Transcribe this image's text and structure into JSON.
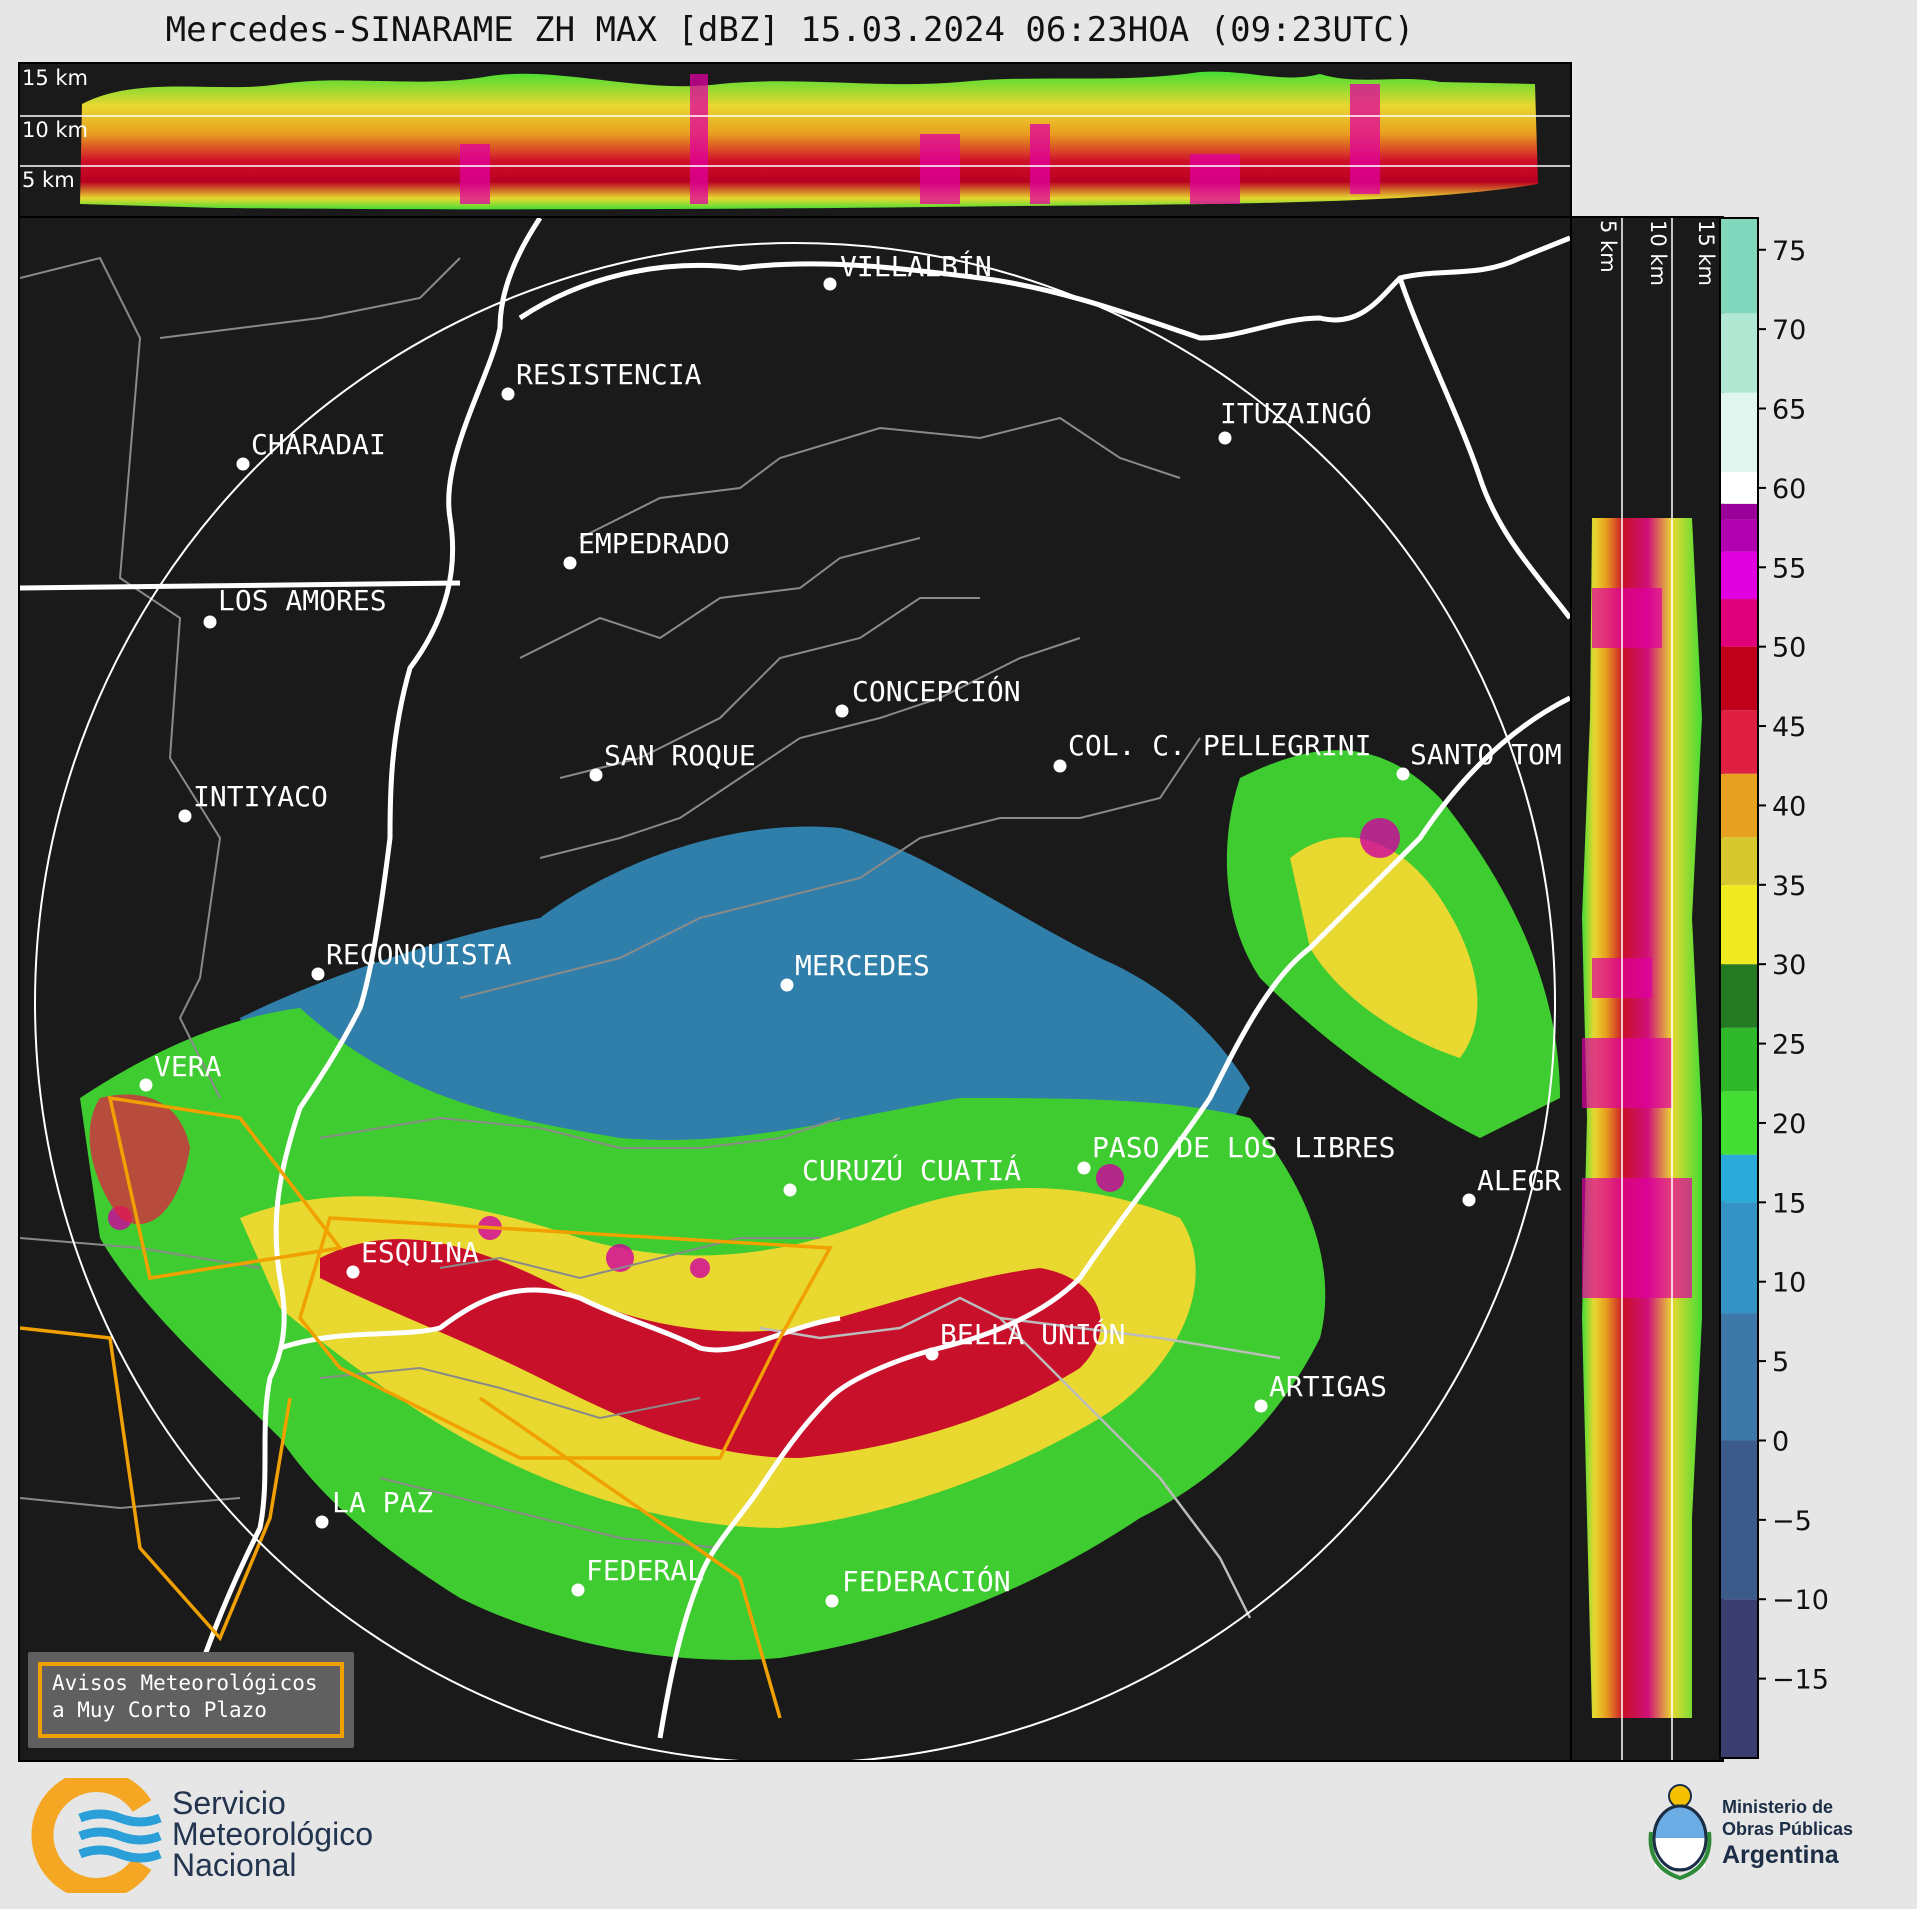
{
  "header": {
    "title": "Mercedes-SINARAME ZH MAX [dBZ] 15.03.2024 06:23HOA (09:23UTC)"
  },
  "height_axes": {
    "labels": [
      "15 km",
      "10 km",
      "5 km"
    ]
  },
  "map": {
    "cities": [
      {
        "name": "VILLALBÍN"
      },
      {
        "name": "RESISTENCIA"
      },
      {
        "name": "CHARADAI"
      },
      {
        "name": "ITUZAINGÓ"
      },
      {
        "name": "EMPEDRADO"
      },
      {
        "name": "LOS AMORES"
      },
      {
        "name": "CONCEPCIÓN"
      },
      {
        "name": "SAN ROQUE"
      },
      {
        "name": "COL. C. PELLEGRINI"
      },
      {
        "name": "SANTO TOM"
      },
      {
        "name": "INTIYACO"
      },
      {
        "name": "RECONQUISTA"
      },
      {
        "name": "MERCEDES"
      },
      {
        "name": "VERA"
      },
      {
        "name": "CURUZÚ CUATIÁ"
      },
      {
        "name": "PASO DE LOS LIBRES"
      },
      {
        "name": "ALEGR"
      },
      {
        "name": "ESQUINA"
      },
      {
        "name": "BELLA UNIÓN"
      },
      {
        "name": "ARTIGAS"
      },
      {
        "name": "LA PAZ"
      },
      {
        "name": "FEDERAL"
      },
      {
        "name": "FEDERACIÓN"
      }
    ]
  },
  "colorbar": {
    "unit": "dBZ",
    "ticks": [
      75,
      70,
      65,
      60,
      55,
      50,
      45,
      40,
      35,
      30,
      25,
      20,
      15,
      10,
      5,
      0,
      -5,
      -10,
      -15
    ],
    "tick_labels": [
      "75",
      "70",
      "65",
      "60",
      "55",
      "50",
      "45",
      "40",
      "35",
      "30",
      "25",
      "20",
      "15",
      "10",
      "5",
      "0",
      "−5",
      "−10",
      "−15"
    ],
    "range": [
      -20,
      77
    ],
    "color_stops": [
      {
        "from": -20,
        "color": "#3a3f70"
      },
      {
        "from": -10,
        "color": "#3c5a8a"
      },
      {
        "from": 0,
        "color": "#3d78a8"
      },
      {
        "from": 8,
        "color": "#3592c4"
      },
      {
        "from": 15,
        "color": "#2aaad8"
      },
      {
        "from": 18,
        "color": "#44dd33"
      },
      {
        "from": 22,
        "color": "#2fb82a"
      },
      {
        "from": 26,
        "color": "#237a22"
      },
      {
        "from": 30,
        "color": "#f0ea20"
      },
      {
        "from": 35,
        "color": "#d8c830"
      },
      {
        "from": 38,
        "color": "#e8a020"
      },
      {
        "from": 42,
        "color": "#e02040"
      },
      {
        "from": 46,
        "color": "#c00018"
      },
      {
        "from": 50,
        "color": "#e0007a"
      },
      {
        "from": 53,
        "color": "#e000e0"
      },
      {
        "from": 56,
        "color": "#b000b0"
      },
      {
        "from": 58,
        "color": "#9a009a"
      },
      {
        "from": 59,
        "color": "#ffffff"
      },
      {
        "from": 61,
        "color": "#e0f5ee"
      },
      {
        "from": 66,
        "color": "#b0e8d4"
      },
      {
        "from": 71,
        "color": "#80d8bc"
      }
    ]
  },
  "notice": {
    "line1": "Avisos Meteorológicos",
    "line2": "a Muy Corto Plazo",
    "border_color": "#f0a000"
  },
  "logos": {
    "smn": {
      "line1": "Servicio",
      "line2": "Meteorológico",
      "line3": "Nacional"
    },
    "ministry": {
      "line1": "Ministerio de",
      "line2": "Obras Públicas",
      "line3": "Argentina"
    }
  }
}
